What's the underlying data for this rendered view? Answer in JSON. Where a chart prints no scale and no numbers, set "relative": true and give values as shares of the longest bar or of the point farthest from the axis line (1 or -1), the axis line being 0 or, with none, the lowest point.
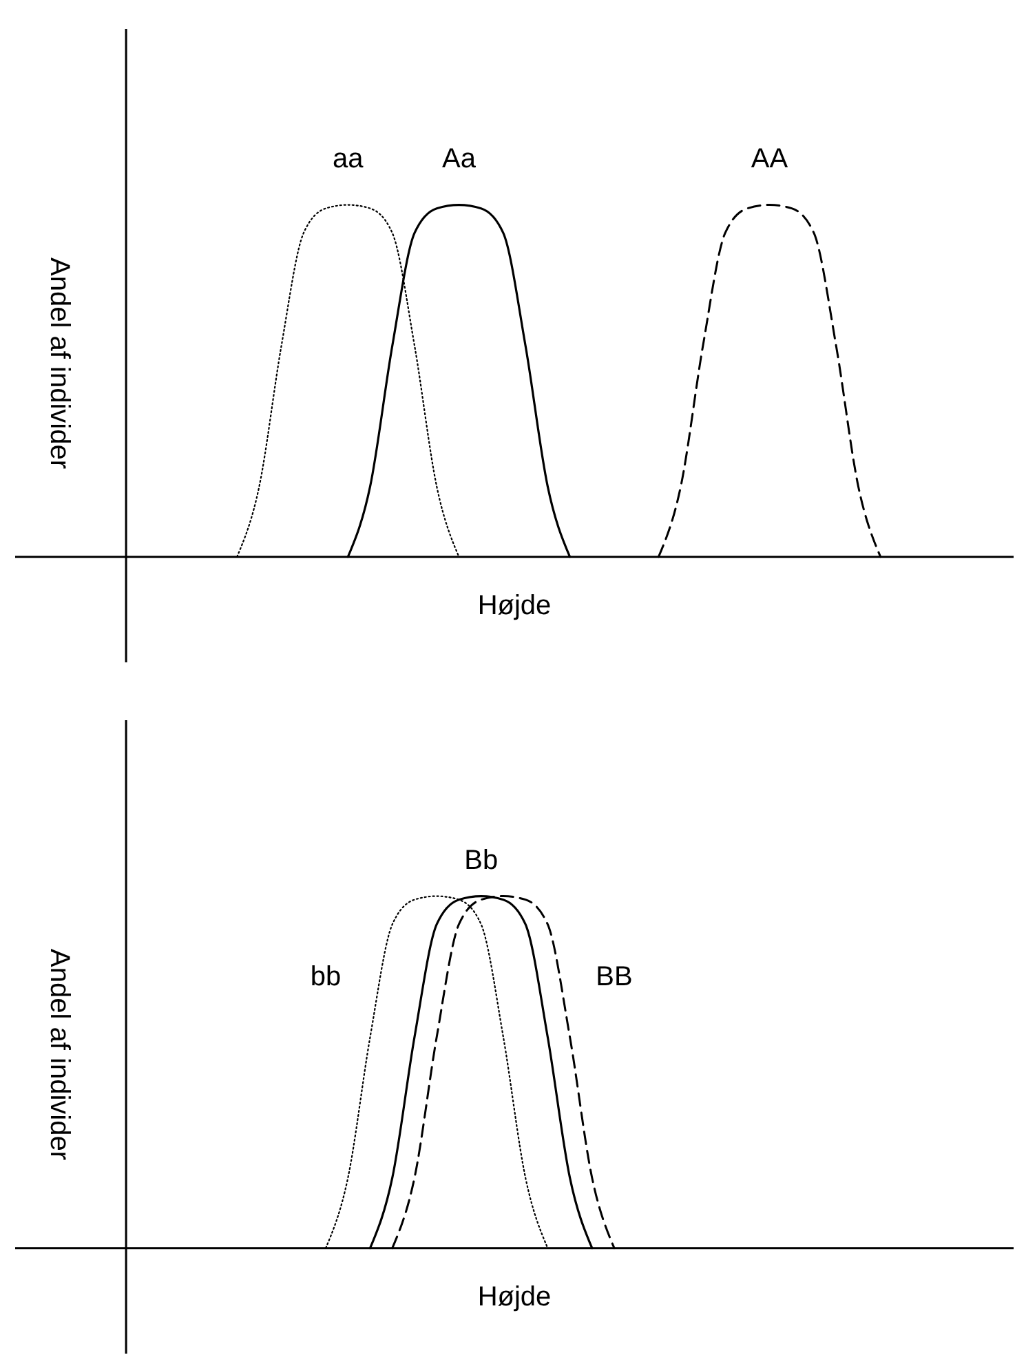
{
  "chart_data": [
    {
      "type": "line",
      "relative": true,
      "xlabel": "Højde",
      "ylabel": "Andel af individer",
      "categories": [
        null,
        null,
        null,
        null,
        null,
        null,
        null,
        null,
        null,
        null,
        null,
        null,
        null,
        null,
        null,
        null,
        null,
        null,
        null,
        null,
        null,
        null,
        null,
        null,
        null,
        null,
        null,
        null,
        null,
        null,
        null,
        null,
        null,
        null,
        null,
        null,
        null,
        null,
        null,
        null,
        null
      ],
      "series": [
        {
          "name": "aa",
          "color": "#000000",
          "line_style": "dotted",
          "values": [
            null,
            null,
            null,
            null,
            null,
            0,
            0.2,
            0.6,
            0.92,
            0.99,
            1,
            0.99,
            0.92,
            0.6,
            0.2,
            0,
            null,
            null,
            null,
            null,
            null,
            null,
            null,
            null,
            null,
            null,
            null,
            null,
            null,
            null,
            null,
            null,
            null,
            null,
            null,
            null,
            null,
            null,
            null,
            null,
            null
          ]
        },
        {
          "name": "Aa",
          "color": "#000000",
          "line_style": "solid",
          "values": [
            null,
            null,
            null,
            null,
            null,
            null,
            null,
            null,
            null,
            null,
            0,
            0.2,
            0.6,
            0.92,
            0.99,
            1,
            0.99,
            0.92,
            0.6,
            0.2,
            0,
            null,
            null,
            null,
            null,
            null,
            null,
            null,
            null,
            null,
            null,
            null,
            null,
            null,
            null,
            null,
            null,
            null,
            null,
            null,
            null
          ]
        },
        {
          "name": "AA",
          "color": "#000000",
          "line_style": "dashed",
          "values": [
            null,
            null,
            null,
            null,
            null,
            null,
            null,
            null,
            null,
            null,
            null,
            null,
            null,
            null,
            null,
            null,
            null,
            null,
            null,
            null,
            null,
            null,
            null,
            null,
            0,
            0.2,
            0.6,
            0.92,
            0.99,
            1,
            0.99,
            0.92,
            0.6,
            0.2,
            0,
            null,
            null,
            null,
            null,
            null,
            null
          ]
        }
      ]
    },
    {
      "type": "line",
      "relative": true,
      "xlabel": "Højde",
      "ylabel": "Andel af individer",
      "categories": [
        null,
        null,
        null,
        null,
        null,
        null,
        null,
        null,
        null,
        null,
        null,
        null,
        null,
        null,
        null,
        null,
        null,
        null,
        null,
        null,
        null,
        null,
        null,
        null,
        null,
        null,
        null,
        null,
        null,
        null,
        null,
        null,
        null,
        null,
        null,
        null,
        null,
        null,
        null,
        null,
        null
      ],
      "series": [
        {
          "name": "bb",
          "color": "#000000",
          "line_style": "dotted",
          "values": [
            null,
            null,
            null,
            null,
            null,
            null,
            null,
            null,
            null,
            0,
            0.2,
            0.6,
            0.92,
            0.99,
            1,
            0.99,
            0.92,
            0.6,
            0.2,
            0,
            null,
            null,
            null,
            null,
            null,
            null,
            null,
            null,
            null,
            null,
            null,
            null,
            null,
            null,
            null,
            null,
            null,
            null,
            null,
            null,
            null
          ]
        },
        {
          "name": "Bb",
          "color": "#000000",
          "line_style": "solid",
          "values": [
            null,
            null,
            null,
            null,
            null,
            null,
            null,
            null,
            null,
            null,
            null,
            0,
            0.2,
            0.6,
            0.92,
            0.99,
            1,
            0.99,
            0.92,
            0.6,
            0.2,
            0,
            null,
            null,
            null,
            null,
            null,
            null,
            null,
            null,
            null,
            null,
            null,
            null,
            null,
            null,
            null,
            null,
            null,
            null,
            null
          ]
        },
        {
          "name": "BB",
          "color": "#000000",
          "line_style": "dashed",
          "values": [
            null,
            null,
            null,
            null,
            null,
            null,
            null,
            null,
            null,
            null,
            null,
            null,
            0,
            0.2,
            0.6,
            0.92,
            0.99,
            1,
            0.99,
            0.92,
            0.6,
            0.2,
            0,
            null,
            null,
            null,
            null,
            null,
            null,
            null,
            null,
            null,
            null,
            null,
            null,
            null,
            null,
            null,
            null,
            null,
            null
          ]
        }
      ]
    }
  ]
}
